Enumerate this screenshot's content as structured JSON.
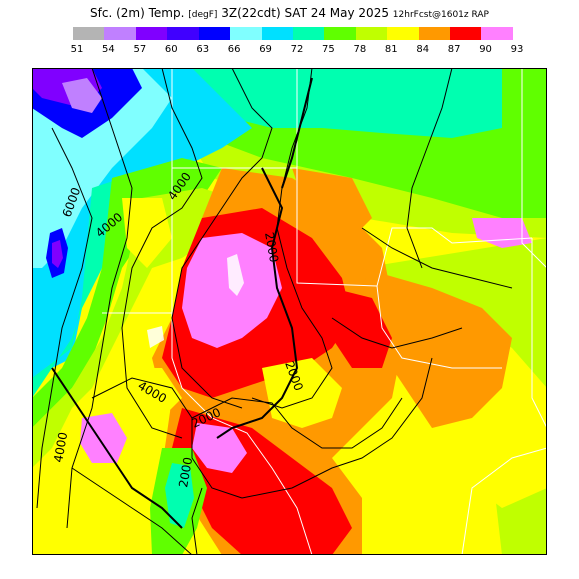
{
  "title": {
    "main": "Sfc. (2m) Temp.",
    "units": "[degF]",
    "time": "3Z(22cdt) SAT 24 May 2025",
    "model": "12hrFcst@1601z RAP"
  },
  "legend": {
    "colors": [
      "#b4b4b4",
      "#c080ff",
      "#8000ff",
      "#4000ff",
      "#0000ff",
      "#80ffff",
      "#00e0ff",
      "#00ffb0",
      "#60ff00",
      "#c0ff00",
      "#ffff00",
      "#ff9900",
      "#ff0000",
      "#ff80ff"
    ],
    "labels": [
      "51",
      "54",
      "57",
      "60",
      "63",
      "66",
      "69",
      "72",
      "75",
      "78",
      "81",
      "84",
      "87",
      "90",
      "93"
    ]
  },
  "contour_labels": [
    "6000",
    "4000",
    "4000",
    "2000",
    "2000",
    "4000",
    "2000",
    "4000",
    "2000"
  ],
  "palette": {
    "pink": "#ff80ff",
    "red": "#ff0000",
    "orange": "#ff9900",
    "yellow": "#ffff00",
    "lime": "#c0ff00",
    "green": "#60ff00",
    "aqua_green": "#00ffb0",
    "cyan": "#00e0ff",
    "light_cyan": "#80ffff",
    "blue": "#0000ff",
    "purple": "#8000ff",
    "lavender": "#c080ff",
    "gray": "#b4b4b4"
  }
}
